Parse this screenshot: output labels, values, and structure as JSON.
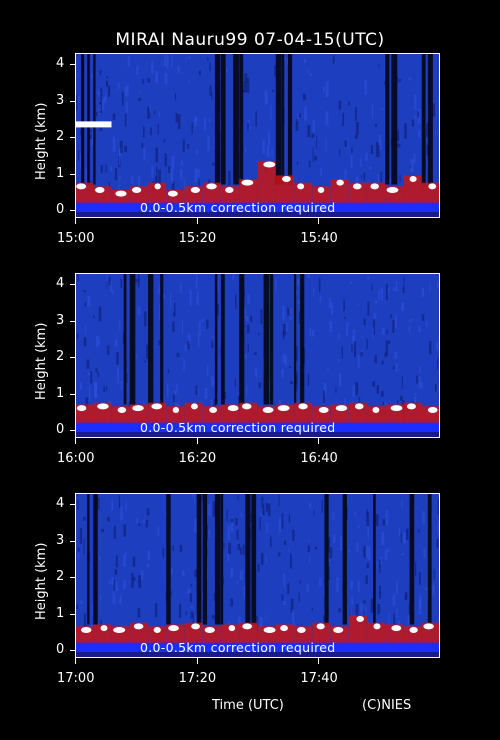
{
  "title": "MIRAI Nauru99 07-04-15(UTC)",
  "note": "0.0-0.5km correction required",
  "xaxis_title": "Time (UTC)",
  "credit": "(C)NIES",
  "colors": {
    "background": "#000000",
    "noise": "#1d3fbf",
    "surface_band": "#1a2fff",
    "aerosol": "#c81414",
    "cloud": "#ffffff",
    "signal_blocked": "#050514"
  },
  "chart_data": [
    {
      "type": "heatmap",
      "ylabel": "Height (km)",
      "ylim": [
        0,
        4.2
      ],
      "yticks": [
        "0",
        "1",
        "2",
        "3",
        "4"
      ],
      "xlim": [
        "15:00",
        "16:00"
      ],
      "xticks": [
        "15:00",
        "15:20",
        "15:40"
      ],
      "cloud_base_km": [
        0.6,
        0.5,
        0.4,
        0.5,
        0.6,
        0.4,
        0.5,
        0.6,
        0.5,
        0.7,
        1.2,
        0.8,
        0.6,
        0.5,
        0.7,
        0.6,
        0.6,
        0.5,
        0.8,
        0.6
      ],
      "elevated_layer": {
        "time": [
          "15:00",
          "15:06"
        ],
        "height_km": 2.35
      },
      "dark_columns_min": [
        1,
        2,
        3,
        23,
        24,
        26,
        27,
        33,
        34,
        35,
        51,
        52,
        57,
        58
      ]
    },
    {
      "type": "heatmap",
      "ylabel": "Height (km)",
      "ylim": [
        0,
        4.2
      ],
      "yticks": [
        "0",
        "1",
        "2",
        "3",
        "4"
      ],
      "xlim": [
        "16:00",
        "17:00"
      ],
      "xticks": [
        "16:00",
        "16:20",
        "16:40"
      ],
      "cloud_base_km": [
        0.55,
        0.6,
        0.5,
        0.55,
        0.6,
        0.5,
        0.6,
        0.5,
        0.55,
        0.6,
        0.5,
        0.55,
        0.6,
        0.5,
        0.55,
        0.6,
        0.5,
        0.55,
        0.6,
        0.5
      ],
      "dark_columns_min": [
        8,
        9,
        12,
        14,
        23,
        24,
        27,
        31,
        32,
        36,
        37
      ]
    },
    {
      "type": "heatmap",
      "ylabel": "Height (km)",
      "ylim": [
        0,
        4.2
      ],
      "yticks": [
        "0",
        "1",
        "2",
        "3",
        "4"
      ],
      "xlim": [
        "17:00",
        "18:00"
      ],
      "xticks": [
        "17:00",
        "17:20",
        "17:40"
      ],
      "cloud_base_km": [
        0.5,
        0.55,
        0.5,
        0.6,
        0.5,
        0.55,
        0.6,
        0.5,
        0.55,
        0.6,
        0.5,
        0.55,
        0.5,
        0.6,
        0.5,
        0.8,
        0.6,
        0.55,
        0.5,
        0.6
      ],
      "dark_columns_min": [
        2,
        3,
        15,
        20,
        21,
        23,
        24,
        28,
        29,
        41,
        44,
        49,
        55,
        58
      ]
    }
  ]
}
